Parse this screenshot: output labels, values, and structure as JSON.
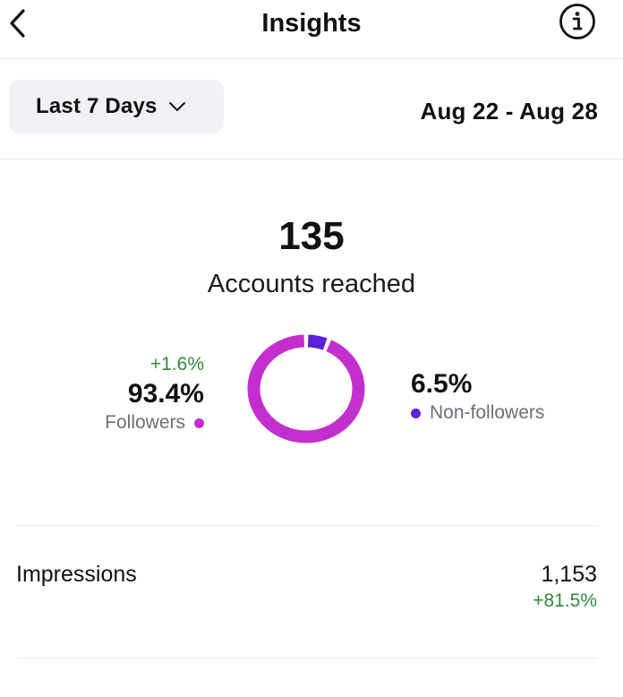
{
  "header": {
    "title": "Insights"
  },
  "filter": {
    "range_label": "Last 7 Days",
    "date_range": "Aug 22 - Aug 28"
  },
  "reach": {
    "value": "135",
    "label": "Accounts reached"
  },
  "breakdown": {
    "followers": {
      "change": "+1.6%",
      "percent": "93.4%",
      "label": "Followers",
      "color": "#c32fcf",
      "fraction": 0.934
    },
    "non_followers": {
      "percent": "6.5%",
      "label": "Non-followers",
      "color": "#5a22d6",
      "fraction": 0.065
    }
  },
  "metrics": [
    {
      "label": "Impressions",
      "value": "1,153",
      "change": "+81.5%"
    }
  ],
  "colors": {
    "positive_change": "#2e8b3a",
    "muted_text": "#6b6f76",
    "dropdown_bg": "#eff1f4"
  },
  "icons": {
    "back": "chevron-left-icon",
    "info": "info-circle-icon",
    "dropdown": "chevron-down-icon"
  }
}
